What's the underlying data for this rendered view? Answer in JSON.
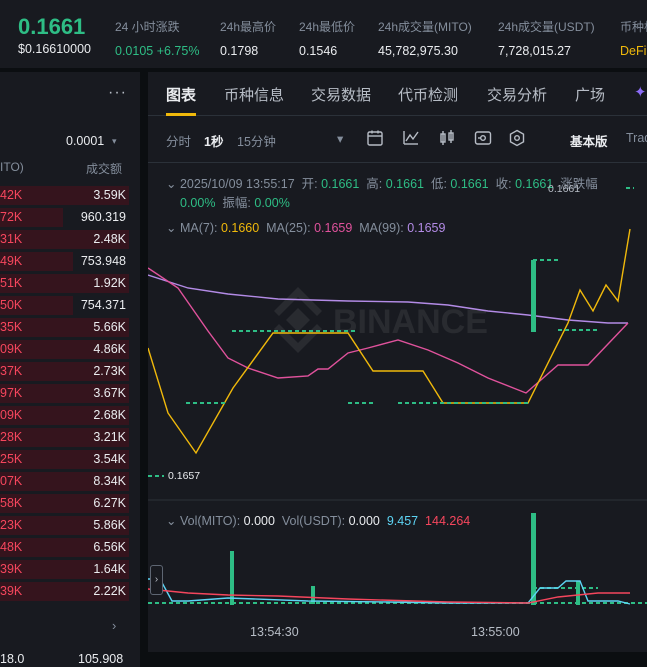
{
  "ticker": {
    "price": "0.1661",
    "price_usd": "$0.16610000",
    "stats": [
      {
        "label": "24 小时涨跌",
        "value": "0.0105 +6.75%",
        "tone": "green"
      },
      {
        "label": "24h最高价",
        "value": "0.1798",
        "tone": ""
      },
      {
        "label": "24h最低价",
        "value": "0.1546",
        "tone": ""
      },
      {
        "label": "24h成交量(MITO)",
        "value": "45,782,975.30",
        "tone": ""
      },
      {
        "label": "24h成交量(USDT)",
        "value": "7,728,015.27",
        "tone": ""
      },
      {
        "label": "币种标",
        "value": "DeFi",
        "tone": "gold"
      }
    ]
  },
  "book": {
    "more": "···",
    "precision": "0.0001",
    "header_left": "ITO)",
    "header_right": "成交额",
    "rows": [
      {
        "l": "42K",
        "r": "3.59K",
        "w": 0.92
      },
      {
        "l": "72K",
        "r": "960.319",
        "w": 0.45
      },
      {
        "l": "31K",
        "r": "2.48K",
        "w": 0.92
      },
      {
        "l": "49K",
        "r": "753.948",
        "w": 0.52
      },
      {
        "l": "51K",
        "r": "1.92K",
        "w": 0.92
      },
      {
        "l": "50K",
        "r": "754.371",
        "w": 0.52
      },
      {
        "l": "35K",
        "r": "5.66K",
        "w": 0.92
      },
      {
        "l": "09K",
        "r": "4.86K",
        "w": 0.92
      },
      {
        "l": "37K",
        "r": "2.73K",
        "w": 0.92
      },
      {
        "l": "97K",
        "r": "3.67K",
        "w": 0.92
      },
      {
        "l": "09K",
        "r": "2.68K",
        "w": 0.92
      },
      {
        "l": "28K",
        "r": "3.21K",
        "w": 0.92
      },
      {
        "l": "25K",
        "r": "3.54K",
        "w": 0.92
      },
      {
        "l": "07K",
        "r": "8.34K",
        "w": 0.92
      },
      {
        "l": "58K",
        "r": "6.27K",
        "w": 0.92
      },
      {
        "l": "23K",
        "r": "5.86K",
        "w": 0.92
      },
      {
        "l": "48K",
        "r": "6.56K",
        "w": 0.92
      },
      {
        "l": "39K",
        "r": "1.64K",
        "w": 0.92
      },
      {
        "l": "39K",
        "r": "2.22K",
        "w": 0.92
      }
    ],
    "chevron": "›",
    "foot_left": "18.0",
    "foot_right": "105.908"
  },
  "tabs": [
    "图表",
    "币种信息",
    "交易数据",
    "代币检测",
    "交易分析",
    "广场"
  ],
  "toolbar": {
    "intervals": [
      "分时",
      "1秒",
      "15分钟"
    ],
    "active_interval": "1秒",
    "caret": "▾",
    "basic": "基本版",
    "trading": "Trad",
    "icons": [
      "calendar-icon",
      "indicator-icon",
      "candle-type-icon",
      "settings-slider-icon",
      "hexagon-settings-icon"
    ]
  },
  "chart": {
    "ohlc_line": {
      "time": "2025/10/09 13:55:17",
      "open_label": "开:",
      "open": "0.1661",
      "high_label": "高:",
      "high": "0.1661",
      "low_label": "低:",
      "low": "0.1661",
      "close_label": "收:",
      "close": "0.1661",
      "change_label": "涨跌幅"
    },
    "change_line": {
      "change": "0.00%",
      "amp_label": "振幅:",
      "amp": "0.00%"
    },
    "ma_line": {
      "ma7_label": "MA(7):",
      "ma7": "0.1660",
      "ma25_label": "MA(25):",
      "ma25": "0.1659",
      "ma99_label": "MA(99):",
      "ma99": "0.1659"
    },
    "vol_line": {
      "vol_mito_label": "Vol(MITO):",
      "vol_mito": "0.000",
      "vol_usdt_label": "Vol(USDT):",
      "vol_usdt": "0.000",
      "v1": "9.457",
      "v2": "144.264"
    },
    "high_marker": "0.1661",
    "low_marker": "0.1657",
    "watermark": "BINANCE",
    "time_labels": [
      "13:54:30",
      "13:55:00"
    ],
    "colors": {
      "up": "#2ebd85",
      "down": "#f6465d",
      "ma7": "#f0b90b",
      "ma25": "#e0529c",
      "ma99": "#b38be6",
      "vol_ma1": "#5dd4f4",
      "vol_ma2": "#f6465d"
    }
  }
}
